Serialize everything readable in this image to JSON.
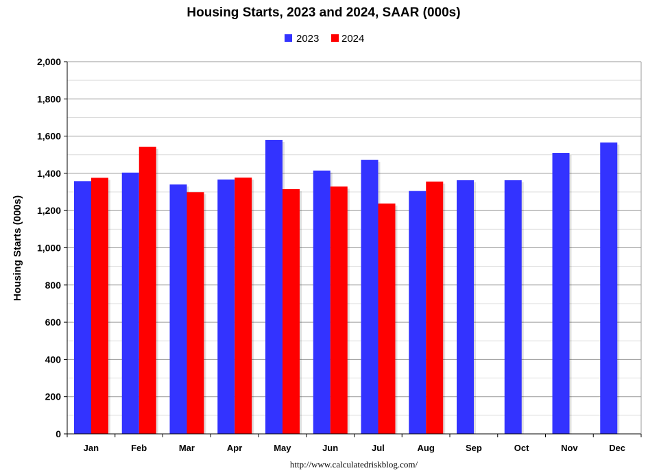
{
  "chart_data": {
    "type": "bar",
    "title": "Housing Starts,  2023 and 2024, SAAR (000s)",
    "ylabel": "Housing Starts (000s)",
    "xlabel": "",
    "categories": [
      "Jan",
      "Feb",
      "Mar",
      "Apr",
      "May",
      "Jun",
      "Jul",
      "Aug",
      "Sep",
      "Oct",
      "Nov",
      "Dec"
    ],
    "series": [
      {
        "name": "2023",
        "color": "#3333ff",
        "values": [
          1358,
          1404,
          1340,
          1367,
          1580,
          1415,
          1473,
          1305,
          1363,
          1363,
          1510,
          1566
        ]
      },
      {
        "name": "2024",
        "color": "#ff0000",
        "values": [
          1376,
          1543,
          1299,
          1377,
          1315,
          1329,
          1238,
          1356,
          null,
          null,
          null,
          null
        ]
      }
    ],
    "ylim": [
      0,
      2000
    ],
    "yticks": [
      0,
      200,
      400,
      600,
      800,
      1000,
      1200,
      1400,
      1600,
      1800,
      2000
    ],
    "ytick_labels": [
      "0",
      "200",
      "400",
      "600",
      "800",
      "1,000",
      "1,200",
      "1,400",
      "1,600",
      "1,800",
      "2,000"
    ],
    "grid": true,
    "legend_position": "top-center"
  },
  "footer": {
    "source": "http://www.calculatedriskblog.com/"
  }
}
